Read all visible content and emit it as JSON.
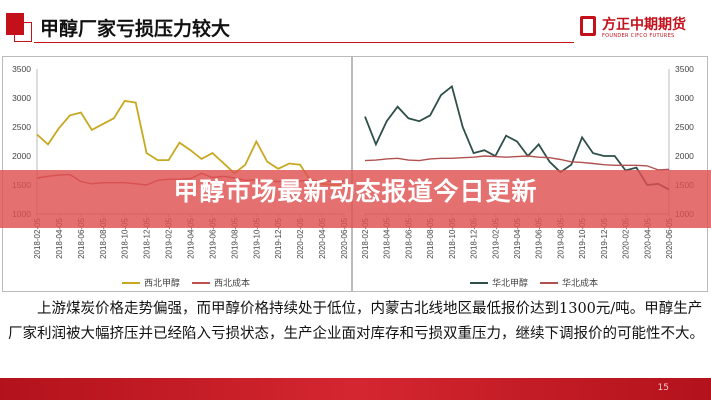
{
  "header": {
    "title": "甲醇厂家亏损压力较大",
    "logo_cn": "方正中期期货",
    "logo_en": "FOUNDER CIFCO FUTURES"
  },
  "banner": {
    "text": "甲醇市场最新动态报道今日更新"
  },
  "body_text": "　　上游煤炭价格走势偏强，而甲醇价格持续处于低位，内蒙古北线地区最低报价达到1300元/吨。甲醇生产厂家利润被大幅挤压并已经陷入亏损状态，生产企业面对库存和亏损双重压力，继续下调报价的可能性不大。",
  "page_number": "15",
  "chart_data": [
    {
      "type": "line",
      "ylim": [
        1000,
        3500
      ],
      "yticks": [
        1000,
        1500,
        2000,
        2500,
        3000,
        3500
      ],
      "xticks": [
        "2018-02-05",
        "2018-04-05",
        "2018-06-05",
        "2018-08-05",
        "2018-10-05",
        "2018-12-05",
        "2019-02-05",
        "2019-04-05",
        "2019-06-05",
        "2019-08-05",
        "2019-10-05",
        "2019-12-05",
        "2020-02-05",
        "2020-04-05",
        "2020-06-05"
      ],
      "legend": "bottom",
      "series": [
        {
          "name": "西北甲醇",
          "color": "#c8a820",
          "values": [
            2370,
            2200,
            2480,
            2700,
            2750,
            2450,
            2550,
            2650,
            2950,
            2920,
            2050,
            1930,
            1930,
            2230,
            2100,
            1950,
            2050,
            1880,
            1700,
            1850,
            2250,
            1900,
            1780,
            1870,
            1850,
            1560,
            1520,
            1500,
            1500
          ]
        },
        {
          "name": "西北成本",
          "color": "#c0504d",
          "values": [
            1620,
            1650,
            1670,
            1680,
            1560,
            1520,
            1540,
            1540,
            1540,
            1520,
            1500,
            1580,
            1600,
            1600,
            1610,
            1700,
            1630,
            1650,
            1620,
            1580,
            1590,
            1570,
            1560,
            1560,
            1570,
            1580,
            1570,
            1560,
            1570
          ]
        }
      ]
    },
    {
      "type": "line",
      "ylim": [
        1000,
        3500
      ],
      "yticks": [
        1000,
        1500,
        2000,
        2500,
        3000,
        3500
      ],
      "xticks": [
        "2018-02-05",
        "2018-04-05",
        "2018-06-05",
        "2018-08-05",
        "2018-10-05",
        "2018-12-05",
        "2019-02-05",
        "2019-04-05",
        "2019-06-05",
        "2019-08-05",
        "2019-10-05",
        "2019-12-05",
        "2020-02-05",
        "2020-04-05",
        "2020-06-05"
      ],
      "legend": "bottom",
      "series": [
        {
          "name": "华北甲醇",
          "color": "#2f4f4a",
          "values": [
            2680,
            2200,
            2600,
            2850,
            2650,
            2600,
            2700,
            3050,
            3200,
            2500,
            2050,
            2100,
            2000,
            2350,
            2250,
            2000,
            2200,
            1900,
            1720,
            1850,
            2320,
            2050,
            2000,
            2000,
            1750,
            1800,
            1500,
            1520,
            1420
          ]
        },
        {
          "name": "华北成本",
          "color": "#b05050",
          "values": [
            1920,
            1930,
            1950,
            1960,
            1930,
            1920,
            1950,
            1960,
            1960,
            1970,
            1980,
            2000,
            1990,
            1980,
            1990,
            2000,
            1980,
            1970,
            1940,
            1900,
            1890,
            1870,
            1850,
            1840,
            1840,
            1840,
            1830,
            1760,
            1770
          ]
        }
      ]
    }
  ]
}
